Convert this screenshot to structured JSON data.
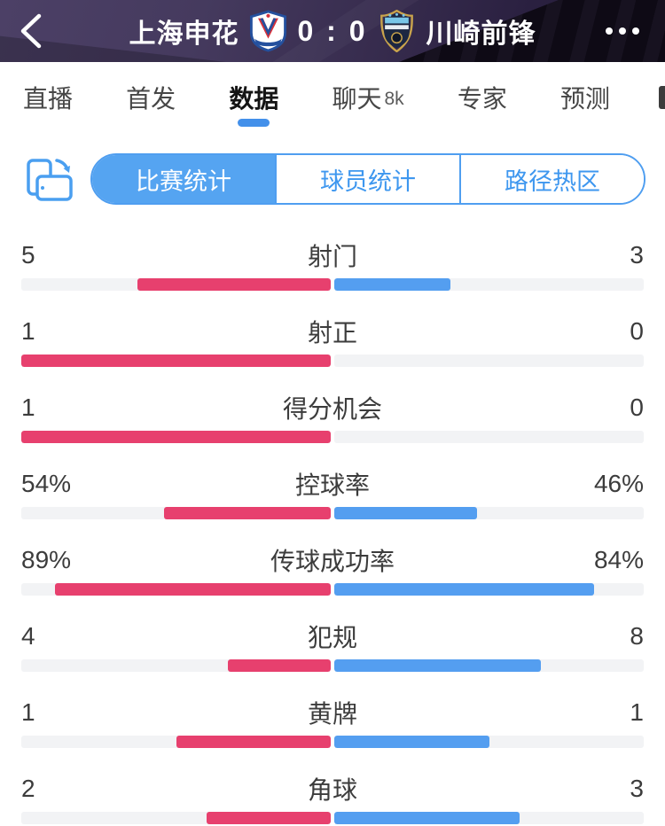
{
  "header": {
    "home_team": "上海申花",
    "score": "0 : 0",
    "away_team": "川崎前锋"
  },
  "tabs": [
    {
      "label": "直播",
      "selected": false
    },
    {
      "label": "首发",
      "selected": false
    },
    {
      "label": "数据",
      "selected": true
    },
    {
      "label": "聊天",
      "badge": "8k",
      "selected": false
    },
    {
      "label": "专家",
      "selected": false
    },
    {
      "label": "预测",
      "selected": false
    }
  ],
  "segments": [
    {
      "label": "比赛统计",
      "selected": true
    },
    {
      "label": "球员统计",
      "selected": false
    },
    {
      "label": "路径热区",
      "selected": false
    }
  ],
  "colors": {
    "accent_blue": "#4f9ef0",
    "segment_fill": "#55a4f1",
    "tab_underline": "#4390ea",
    "home_bar": "#e7406e",
    "away_bar": "#549ef0",
    "bar_track": "#f2f3f5"
  },
  "chart_data": {
    "type": "bar",
    "orientation": "horizontal-paired-from-center",
    "title": "比赛统计",
    "categories": [
      "射门",
      "射正",
      "得分机会",
      "控球率",
      "传球成功率",
      "犯规",
      "黄牌",
      "角球"
    ],
    "series": [
      {
        "name": "上海申花",
        "color": "#e7406e",
        "values": [
          5,
          1,
          1,
          54,
          89,
          4,
          1,
          2
        ]
      },
      {
        "name": "川崎前锋",
        "color": "#549ef0",
        "values": [
          3,
          0,
          0,
          46,
          84,
          8,
          1,
          3
        ]
      }
    ],
    "stats": [
      {
        "label": "射门",
        "home": 5,
        "away": 3,
        "percent": false,
        "home_display": "5",
        "away_display": "3"
      },
      {
        "label": "射正",
        "home": 1,
        "away": 0,
        "percent": false,
        "home_display": "1",
        "away_display": "0"
      },
      {
        "label": "得分机会",
        "home": 1,
        "away": 0,
        "percent": false,
        "home_display": "1",
        "away_display": "0"
      },
      {
        "label": "控球率",
        "home": 54,
        "away": 46,
        "percent": true,
        "home_display": "54%",
        "away_display": "46%"
      },
      {
        "label": "传球成功率",
        "home": 89,
        "away": 84,
        "percent": true,
        "home_display": "89%",
        "away_display": "84%"
      },
      {
        "label": "犯规",
        "home": 4,
        "away": 8,
        "percent": false,
        "home_display": "4",
        "away_display": "8"
      },
      {
        "label": "黄牌",
        "home": 1,
        "away": 1,
        "percent": false,
        "home_display": "1",
        "away_display": "1"
      },
      {
        "label": "角球",
        "home": 2,
        "away": 3,
        "percent": false,
        "home_display": "2",
        "away_display": "3"
      }
    ]
  }
}
